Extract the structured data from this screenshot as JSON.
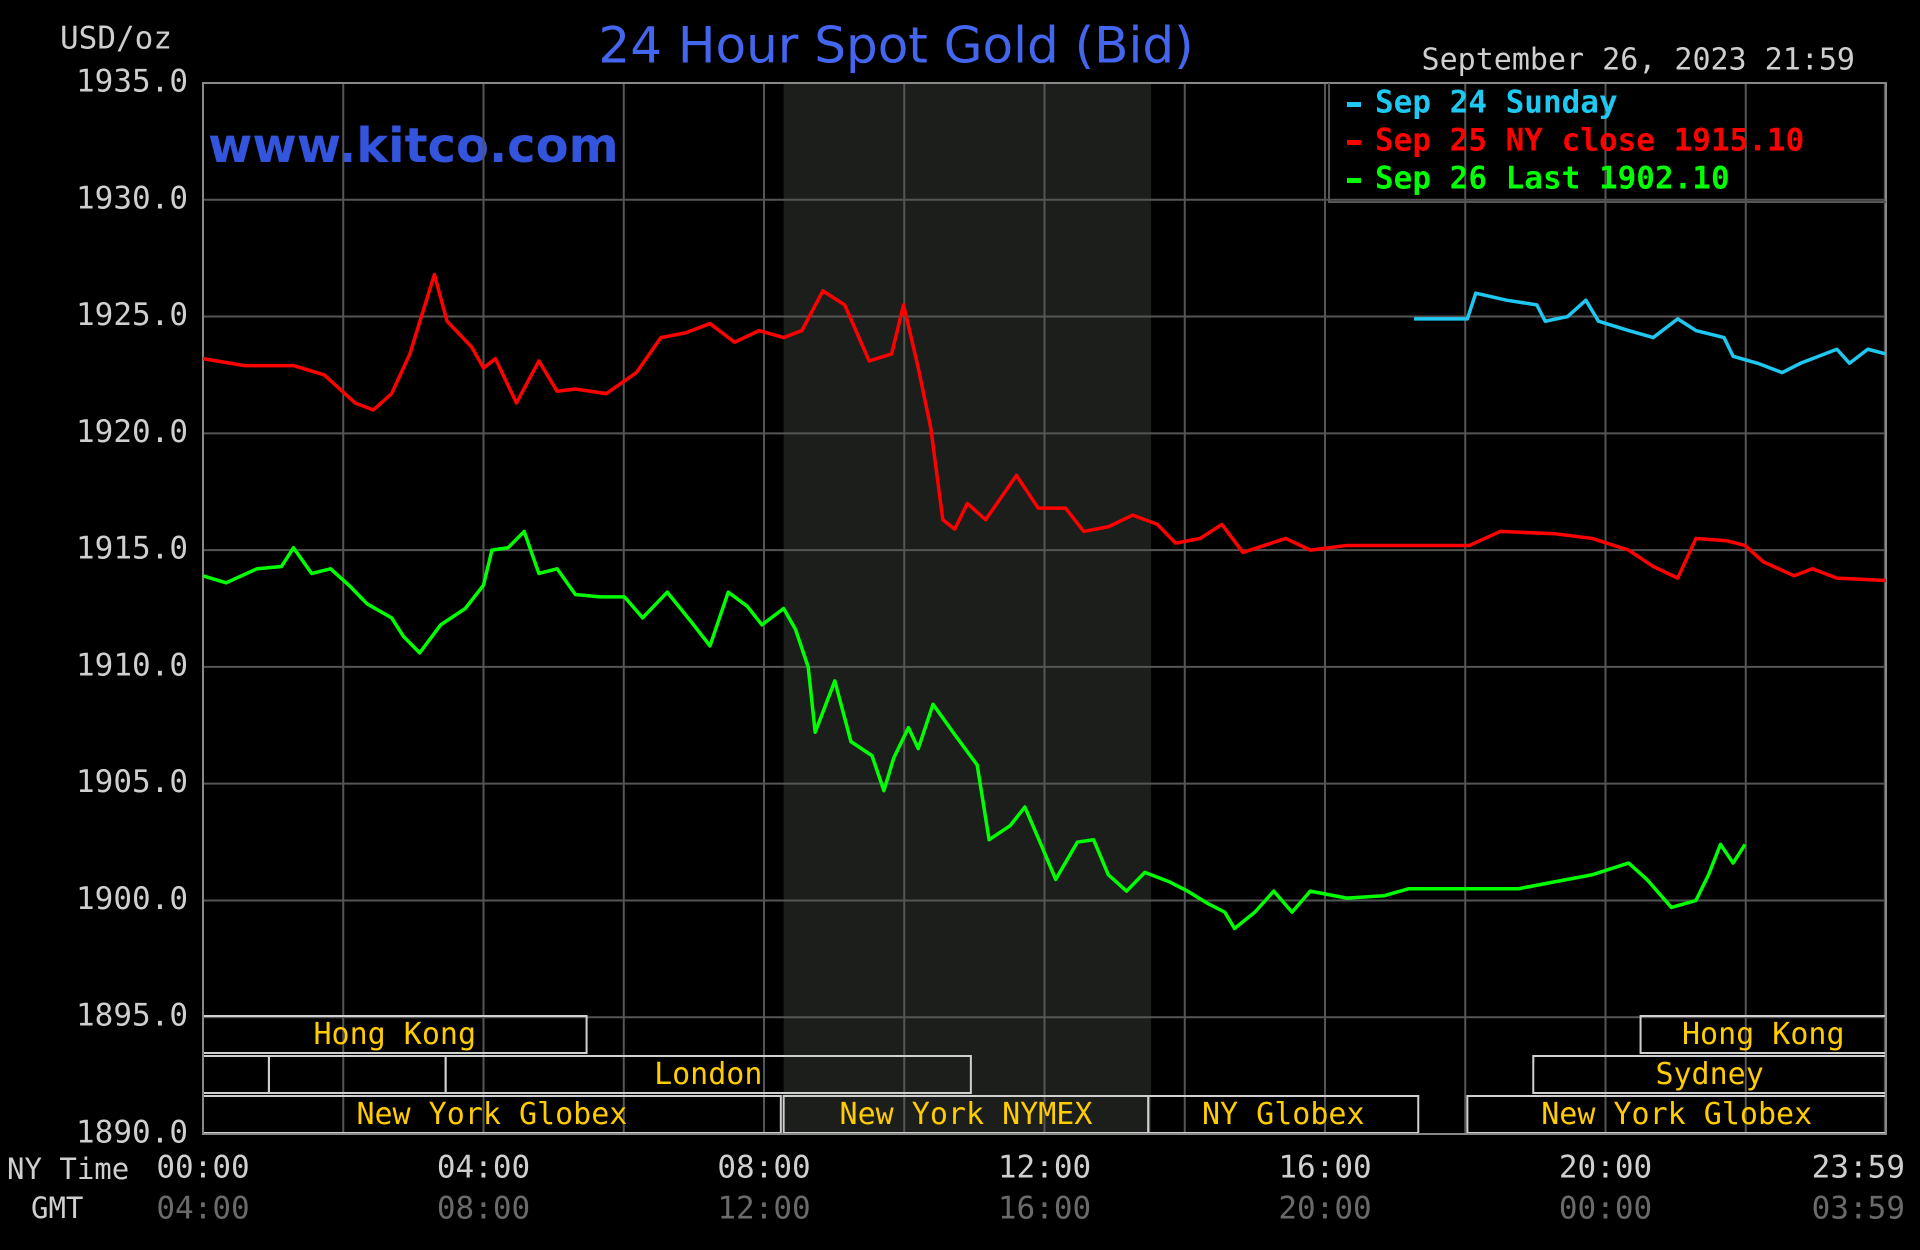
{
  "chart_data": {
    "type": "line",
    "title": "24 Hour Spot Gold (Bid)",
    "unit_label": "USD/oz",
    "watermark": "www.kitco.com",
    "timestamp": "September 26, 2023 21:59",
    "x_axis_labels": [
      "NY Time",
      "GMT"
    ],
    "xlim": [
      0,
      24
    ],
    "xticks": [
      {
        "value": 0,
        "label": "00:00"
      },
      {
        "value": 4,
        "label": "04:00"
      },
      {
        "value": 8,
        "label": "08:00"
      },
      {
        "value": 12,
        "label": "12:00"
      },
      {
        "value": 16,
        "label": "16:00"
      },
      {
        "value": 20,
        "label": "20:00"
      },
      {
        "value": 23.983,
        "label": "23:59"
      }
    ],
    "gmt_labels": [
      "04:00",
      "08:00",
      "12:00",
      "16:00",
      "20:00",
      "00:00",
      "03:59"
    ],
    "xgrid": [
      2,
      6,
      10,
      14,
      18,
      22
    ],
    "ylim": [
      1890,
      1935
    ],
    "yticks": [
      {
        "value": 1890,
        "label": "1890.0"
      },
      {
        "value": 1895,
        "label": "1895.0"
      },
      {
        "value": 1900,
        "label": "1900.0"
      },
      {
        "value": 1905,
        "label": "1905.0"
      },
      {
        "value": 1910,
        "label": "1910.0"
      },
      {
        "value": 1915,
        "label": "1915.0"
      },
      {
        "value": 1920,
        "label": "1920.0"
      },
      {
        "value": 1925,
        "label": "1925.0"
      },
      {
        "value": 1930,
        "label": "1930.0"
      },
      {
        "value": 1935,
        "label": "1935.0"
      }
    ],
    "grid": true,
    "shade": [
      8.28,
      13.52
    ],
    "sessions": [
      [
        {
          "label": "Hong Kong",
          "start": 0,
          "end": 5.47
        },
        {
          "label": "Hong Kong",
          "start": 20.5,
          "end": 24
        }
      ],
      [
        {
          "start": 0,
          "end": 0.94
        },
        {
          "start": 0.94,
          "end": 3.46
        },
        {
          "label": "London",
          "start": 3.46,
          "end": 10.95
        },
        {
          "label": "Sydney",
          "start": 18.97,
          "end": 24
        }
      ],
      [
        {
          "label": "New York Globex",
          "start": 0,
          "end": 8.24
        },
        {
          "label": "New York NYMEX",
          "start": 8.28,
          "end": 13.48
        },
        {
          "label": "NY Globex",
          "start": 13.48,
          "end": 17.33
        },
        {
          "label": "New York Globex",
          "start": 18.03,
          "end": 24
        }
      ]
    ],
    "series": [
      {
        "name": "Sep 24 Sunday",
        "color": "#1ec8f0",
        "x": [
          17.27,
          18.03,
          18.15,
          18.59,
          19.02,
          19.14,
          19.46,
          19.72,
          19.9,
          20.33,
          20.68,
          21.03,
          21.29,
          21.69,
          21.82,
          22.17,
          22.52,
          22.78,
          23.3,
          23.48,
          23.74,
          24.0
        ],
        "values": [
          1924.9,
          1924.9,
          1926.0,
          1925.7,
          1925.5,
          1924.8,
          1925.0,
          1925.7,
          1924.8,
          1924.4,
          1924.1,
          1924.9,
          1924.4,
          1924.1,
          1923.3,
          1923.0,
          1922.6,
          1923.0,
          1923.6,
          1923.0,
          1923.6,
          1923.4
        ]
      },
      {
        "name": "Sep 25 NY close 1915.10",
        "color": "#ff0000",
        "x": [
          0,
          0.59,
          1.29,
          1.73,
          2.17,
          2.43,
          2.69,
          2.95,
          3.3,
          3.48,
          3.83,
          4.0,
          4.17,
          4.47,
          4.79,
          5.05,
          5.31,
          5.75,
          6.18,
          6.53,
          6.88,
          7.23,
          7.58,
          7.93,
          8.28,
          8.54,
          8.84,
          9.15,
          9.5,
          9.82,
          9.99,
          10.2,
          10.38,
          10.55,
          10.72,
          10.9,
          11.16,
          11.6,
          11.91,
          12.3,
          12.56,
          12.91,
          13.26,
          13.61,
          13.87,
          14.22,
          14.53,
          14.83,
          15.44,
          15.79,
          16.31,
          17.19,
          18.06,
          18.5,
          19.28,
          19.81,
          20.33,
          20.68,
          21.03,
          21.29,
          21.73,
          21.99,
          22.25,
          22.69,
          22.95,
          23.3,
          24.0
        ],
        "values": [
          1923.2,
          1922.9,
          1922.9,
          1922.5,
          1921.3,
          1921.0,
          1921.7,
          1923.4,
          1926.8,
          1924.8,
          1923.7,
          1922.8,
          1923.2,
          1921.3,
          1923.1,
          1921.8,
          1921.9,
          1921.7,
          1922.6,
          1924.1,
          1924.3,
          1924.7,
          1923.9,
          1924.4,
          1924.1,
          1924.4,
          1926.1,
          1925.5,
          1923.1,
          1923.4,
          1925.5,
          1922.8,
          1920.2,
          1916.3,
          1915.9,
          1917.0,
          1916.3,
          1918.2,
          1916.8,
          1916.8,
          1915.8,
          1916.0,
          1916.5,
          1916.1,
          1915.3,
          1915.5,
          1916.1,
          1914.9,
          1915.5,
          1915.0,
          1915.2,
          1915.2,
          1915.2,
          1915.8,
          1915.7,
          1915.5,
          1915.0,
          1914.3,
          1913.8,
          1915.5,
          1915.4,
          1915.2,
          1914.5,
          1913.9,
          1914.2,
          1913.8,
          1913.7
        ]
      },
      {
        "name": "Sep 26 Last 1902.10",
        "color": "#00ff00",
        "x": [
          0,
          0.33,
          0.77,
          1.12,
          1.29,
          1.55,
          1.82,
          2.08,
          2.34,
          2.69,
          2.86,
          3.09,
          3.39,
          3.74,
          4.0,
          4.12,
          4.35,
          4.58,
          4.79,
          5.05,
          5.31,
          5.66,
          6.01,
          6.27,
          6.62,
          6.97,
          7.23,
          7.49,
          7.76,
          7.97,
          8.28,
          8.45,
          8.63,
          8.73,
          9.01,
          9.24,
          9.54,
          9.71,
          9.85,
          10.06,
          10.2,
          10.41,
          10.72,
          11.04,
          11.21,
          11.51,
          11.72,
          11.95,
          12.16,
          12.47,
          12.7,
          12.91,
          13.17,
          13.43,
          13.78,
          14.04,
          14.31,
          14.57,
          14.71,
          15.0,
          15.27,
          15.53,
          15.79,
          16.31,
          16.84,
          17.19,
          18.06,
          18.76,
          19.28,
          19.81,
          20.33,
          20.59,
          20.94,
          21.29,
          21.47,
          21.64,
          21.82,
          21.99
        ],
        "values": [
          1913.9,
          1913.6,
          1914.2,
          1914.3,
          1915.1,
          1914.0,
          1914.2,
          1913.5,
          1912.7,
          1912.1,
          1911.3,
          1910.6,
          1911.8,
          1912.5,
          1913.5,
          1915.0,
          1915.1,
          1915.8,
          1914.0,
          1914.2,
          1913.1,
          1913.0,
          1913.0,
          1912.1,
          1913.2,
          1911.9,
          1910.9,
          1913.2,
          1912.6,
          1911.8,
          1912.5,
          1911.6,
          1910.0,
          1907.2,
          1909.4,
          1906.8,
          1906.2,
          1904.7,
          1906.1,
          1907.4,
          1906.5,
          1908.4,
          1907.1,
          1905.8,
          1902.6,
          1903.2,
          1904.0,
          1902.4,
          1900.9,
          1902.5,
          1902.6,
          1901.1,
          1900.4,
          1901.2,
          1900.8,
          1900.4,
          1899.9,
          1899.5,
          1898.8,
          1899.5,
          1900.4,
          1899.5,
          1900.4,
          1900.1,
          1900.2,
          1900.5,
          1900.5,
          1900.5,
          1900.8,
          1901.1,
          1901.6,
          1900.9,
          1899.7,
          1900.0,
          1901.1,
          1902.4,
          1901.6,
          1902.4
        ]
      }
    ]
  }
}
